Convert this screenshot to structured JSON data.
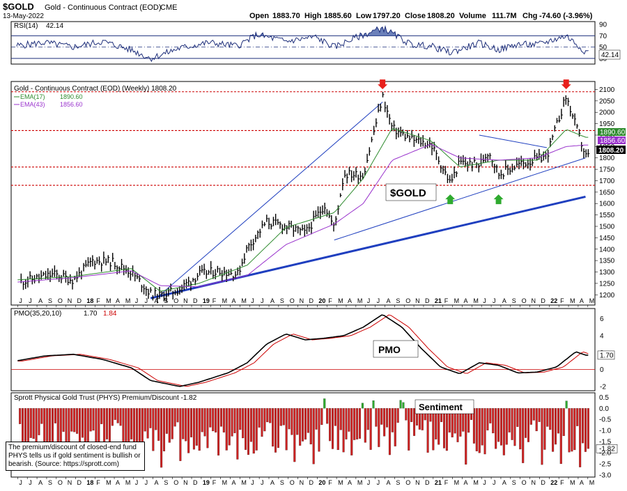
{
  "header": {
    "symbol": "$GOLD",
    "name": "Gold - Continuous Contract (EOD)",
    "exchange": "CME",
    "date": "13-May-2022",
    "open_label": "Open",
    "open": "1883.70",
    "high_label": "High",
    "high": "1885.60",
    "low_label": "Low",
    "low": "1797.20",
    "close_label": "Close",
    "close": "1808.20",
    "volume_label": "Volume",
    "volume": "111.7M",
    "chg_label": "Chg",
    "chg": "-74.60 (-3.96%)"
  },
  "rsi_panel": {
    "label": "RSI(14)",
    "value": "42.14",
    "ticks": [
      "90",
      "70",
      "50",
      "30"
    ],
    "ylim": [
      20,
      95
    ],
    "overbought": 70,
    "oversold": 30,
    "fill_color": "#2c4a9c"
  },
  "price_panel": {
    "legend_title": "Gold - Continuous Contract (EOD) (Weekly) 1808.20",
    "ema17_label": "EMA(17)",
    "ema17_value": "1890.60",
    "ema17_color": "#2e8b2e",
    "ema43_label": "EMA(43)",
    "ema43_value": "1856.60",
    "ema43_color": "#9932cc",
    "watermark": "$GOLD",
    "last_price": "1808.20",
    "ticks": [
      "2100",
      "2050",
      "2000",
      "1950",
      "1900",
      "1850",
      "1800",
      "1750",
      "1700",
      "1650",
      "1600",
      "1550",
      "1500",
      "1450",
      "1400",
      "1350",
      "1300",
      "1250",
      "1200"
    ],
    "ylim": [
      1155,
      2135
    ],
    "resistance_lines": [
      2090,
      1920,
      1760,
      1680
    ],
    "trendline_color": "#1f3fbf",
    "down_arrow_color": "#e8201c",
    "up_arrow_color": "#2faa2f"
  },
  "pmo_panel": {
    "label": "PMO(35,20,10)",
    "pmo_value": "1.70",
    "signal_value": "1.84",
    "signal_color": "#cc0000",
    "callout": "PMO",
    "ticks": [
      "6",
      "4",
      "2",
      "1.70",
      "0",
      "-2"
    ],
    "ylim": [
      -2.5,
      7.2
    ]
  },
  "sentiment_panel": {
    "label": "Sprott Physical Gold Trust (PHYS) Premium/Discount -1.82",
    "callout": "Sentiment",
    "ticks": [
      "0.5",
      "0.0",
      "-0.5",
      "-1.0",
      "-1.5",
      "-1.82",
      "-2.0",
      "-2.5",
      "-3.0"
    ],
    "ylim": [
      -3.1,
      0.7
    ],
    "pos_color": "#2faa2f",
    "neg_color": "#cc2222",
    "note": "The premium/discount of closed-end fund PHYS tells us if gold sentiment is bullish or bearish. (Source: https://sprott.com)"
  },
  "x_axis": {
    "labels": [
      "J",
      "J",
      "A",
      "S",
      "O",
      "N",
      "D",
      "18",
      "F",
      "M",
      "A",
      "M",
      "J",
      "J",
      "A",
      "S",
      "O",
      "N",
      "D",
      "19",
      "F",
      "M",
      "A",
      "M",
      "J",
      "J",
      "A",
      "S",
      "O",
      "N",
      "D",
      "20",
      "F",
      "M",
      "A",
      "M",
      "J",
      "J",
      "A",
      "S",
      "O",
      "N",
      "D",
      "21",
      "F",
      "M",
      "A",
      "M",
      "J",
      "J",
      "A",
      "S",
      "O",
      "N",
      "D",
      "22",
      "F",
      "M",
      "A",
      "M"
    ],
    "bold_labels": [
      "18",
      "19",
      "20",
      "21",
      "22"
    ]
  },
  "chart_data": {
    "type": "line",
    "title": "Gold - Continuous Contract (EOD)",
    "series": [
      {
        "name": "Gold - Continuous Contract (EOD) (Weekly)",
        "x": [
          "2017-06",
          "2017-08",
          "2017-10",
          "2017-12",
          "2018-02",
          "2018-04",
          "2018-06",
          "2018-08",
          "2018-09",
          "2018-11",
          "2019-01",
          "2019-03",
          "2019-05",
          "2019-06",
          "2019-08",
          "2019-10",
          "2019-12",
          "2020-02",
          "2020-03",
          "2020-04",
          "2020-06",
          "2020-08",
          "2020-09",
          "2020-11",
          "2021-01",
          "2021-03",
          "2021-04",
          "2021-06",
          "2021-07",
          "2021-08",
          "2021-10",
          "2021-12",
          "2022-01",
          "2022-03",
          "2022-04",
          "2022-05"
        ],
        "values": [
          1255,
          1270,
          1290,
          1265,
          1350,
          1345,
          1300,
          1205,
          1195,
          1225,
          1290,
          1305,
          1290,
          1405,
          1520,
          1500,
          1470,
          1595,
          1490,
          1730,
          1725,
          2070,
          1930,
          1880,
          1860,
          1690,
          1780,
          1770,
          1830,
          1730,
          1770,
          1795,
          1810,
          2070,
          1940,
          1808
        ]
      },
      {
        "name": "EMA(17)",
        "x": [
          "2017-06",
          "2017-12",
          "2018-06",
          "2018-09",
          "2019-01",
          "2019-06",
          "2019-10",
          "2020-03",
          "2020-06",
          "2020-09",
          "2021-01",
          "2021-04",
          "2021-08",
          "2021-12",
          "2022-03",
          "2022-05"
        ],
        "values": [
          1265,
          1280,
          1315,
          1215,
          1250,
          1330,
          1495,
          1560,
          1710,
          1930,
          1875,
          1760,
          1790,
          1790,
          1925,
          1890.6
        ]
      },
      {
        "name": "EMA(43)",
        "x": [
          "2017-06",
          "2017-12",
          "2018-06",
          "2018-09",
          "2019-01",
          "2019-06",
          "2019-10",
          "2020-03",
          "2020-06",
          "2020-09",
          "2021-01",
          "2021-04",
          "2021-08",
          "2021-12",
          "2022-03",
          "2022-05"
        ],
        "values": [
          1255,
          1275,
          1305,
          1240,
          1235,
          1285,
          1420,
          1510,
          1600,
          1790,
          1860,
          1800,
          1790,
          1800,
          1850,
          1856.6
        ]
      }
    ],
    "indicators": {
      "rsi": {
        "label": "RSI(14)",
        "x": [
          "2017-06",
          "2017-09",
          "2017-12",
          "2018-03",
          "2018-06",
          "2018-08",
          "2018-11",
          "2019-02",
          "2019-05",
          "2019-07",
          "2019-10",
          "2020-01",
          "2020-03",
          "2020-05",
          "2020-08",
          "2020-11",
          "2021-01",
          "2021-03",
          "2021-06",
          "2021-08",
          "2021-10",
          "2021-12",
          "2022-03",
          "2022-05"
        ],
        "values": [
          52,
          58,
          50,
          60,
          45,
          30,
          48,
          58,
          52,
          72,
          60,
          68,
          50,
          65,
          84,
          54,
          52,
          40,
          57,
          45,
          55,
          54,
          70,
          42.14
        ]
      },
      "pmo": {
        "label": "PMO(35,20,10)",
        "x": [
          "2017-06",
          "2017-09",
          "2017-12",
          "2018-03",
          "2018-06",
          "2018-08",
          "2018-11",
          "2019-01",
          "2019-04",
          "2019-06",
          "2019-08",
          "2019-10",
          "2019-12",
          "2020-02",
          "2020-04",
          "2020-06",
          "2020-08",
          "2020-10",
          "2020-12",
          "2021-02",
          "2021-04",
          "2021-06",
          "2021-08",
          "2021-10",
          "2021-12",
          "2022-02",
          "2022-04",
          "2022-05"
        ],
        "values": [
          1.0,
          1.6,
          1.8,
          1.2,
          0.2,
          -1.3,
          -2.0,
          -1.5,
          -0.4,
          0.8,
          3.0,
          4.2,
          3.5,
          3.7,
          4.0,
          5.0,
          6.5,
          5.0,
          2.5,
          0.3,
          -0.5,
          0.8,
          0.5,
          -0.4,
          -0.3,
          0.3,
          2.1,
          1.7
        ]
      },
      "pmo_signal": {
        "label": "signal",
        "last_value": 1.84
      },
      "phys_premium_discount": {
        "label": "Sprott Physical Gold Trust (PHYS) Premium/Discount",
        "last_value": -1.82,
        "range": [
          -2.9,
          0.5
        ]
      }
    },
    "xlim": [
      "2017-06",
      "2022-05"
    ]
  }
}
